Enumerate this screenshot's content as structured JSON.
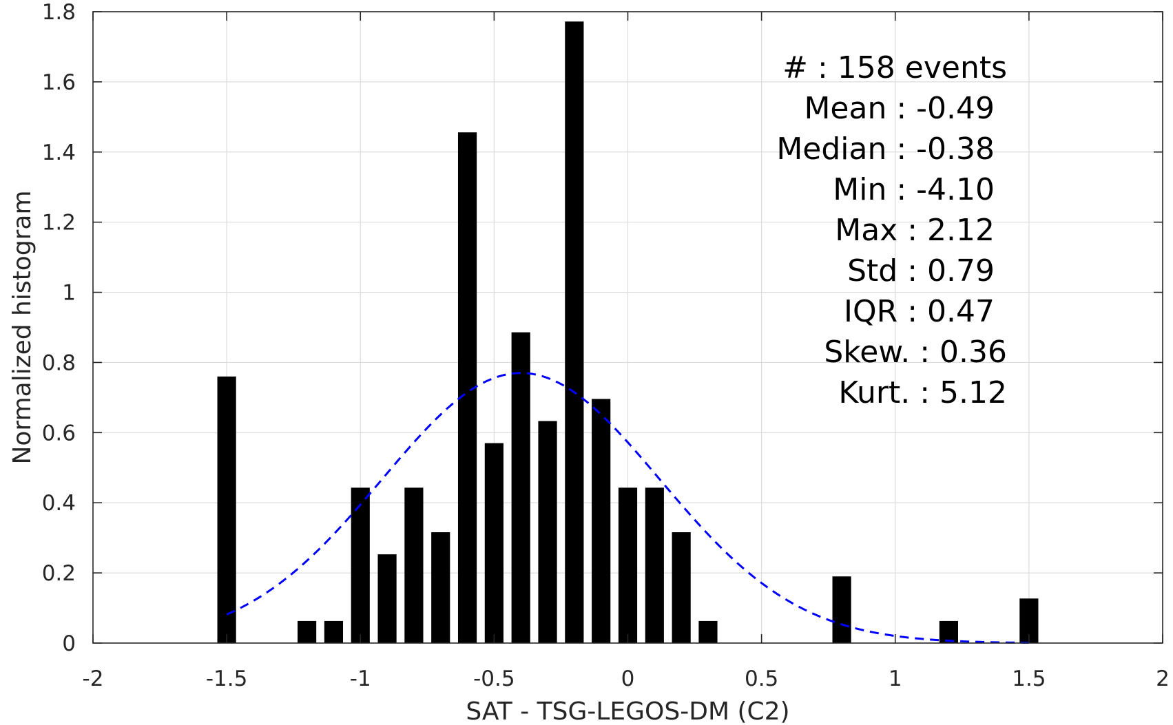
{
  "chart_data": {
    "type": "bar",
    "xlabel": "SAT - TSG-LEGOS-DM (C2)",
    "ylabel": "Normalized histogram",
    "xlim": [
      -2,
      2
    ],
    "ylim": [
      0,
      1.8
    ],
    "xticks": [
      -2,
      -1.5,
      -1,
      -0.5,
      0,
      0.5,
      1,
      1.5,
      2
    ],
    "xtick_labels": [
      "-2",
      "-1.5",
      "-1",
      "-0.5",
      "0",
      "0.5",
      "1",
      "1.5",
      "2"
    ],
    "yticks": [
      0,
      0.2,
      0.4,
      0.6,
      0.8,
      1,
      1.2,
      1.4,
      1.6,
      1.8
    ],
    "ytick_labels": [
      "0",
      "0.2",
      "0.4",
      "0.6",
      "0.8",
      "1",
      "1.2",
      "1.4",
      "1.6",
      "1.8"
    ],
    "grid": true,
    "bin_width": 0.1,
    "bar_width_fraction": 0.7,
    "bars": {
      "x": [
        -1.5,
        -1.2,
        -1.1,
        -1.0,
        -0.9,
        -0.8,
        -0.7,
        -0.6,
        -0.5,
        -0.4,
        -0.3,
        -0.2,
        -0.1,
        0.0,
        0.1,
        0.2,
        0.3,
        0.8,
        1.2,
        1.5
      ],
      "values": [
        0.76,
        0.063,
        0.063,
        0.443,
        0.253,
        0.443,
        0.316,
        1.456,
        0.57,
        0.886,
        0.633,
        1.772,
        0.696,
        0.443,
        0.443,
        0.316,
        0.063,
        0.19,
        0.063,
        0.127
      ]
    },
    "fit": {
      "type": "normal",
      "mean": -0.4,
      "std": 0.519,
      "peak": 0.77,
      "x_range": [
        -1.5,
        1.5
      ]
    },
    "colors": {
      "bars": "#000000",
      "fit": "#0000ff"
    },
    "stats": [
      {
        "label": "#  : 158 events"
      },
      {
        "label": "Mean : -0.49"
      },
      {
        "label": "Median : -0.38"
      },
      {
        "label": "Min : -4.10"
      },
      {
        "label": "Max : 2.12"
      },
      {
        "label": "Std : 0.79"
      },
      {
        "label": "IQR : 0.47"
      },
      {
        "label": "Skew. : 0.36"
      },
      {
        "label": "Kurt. : 5.12"
      }
    ]
  }
}
